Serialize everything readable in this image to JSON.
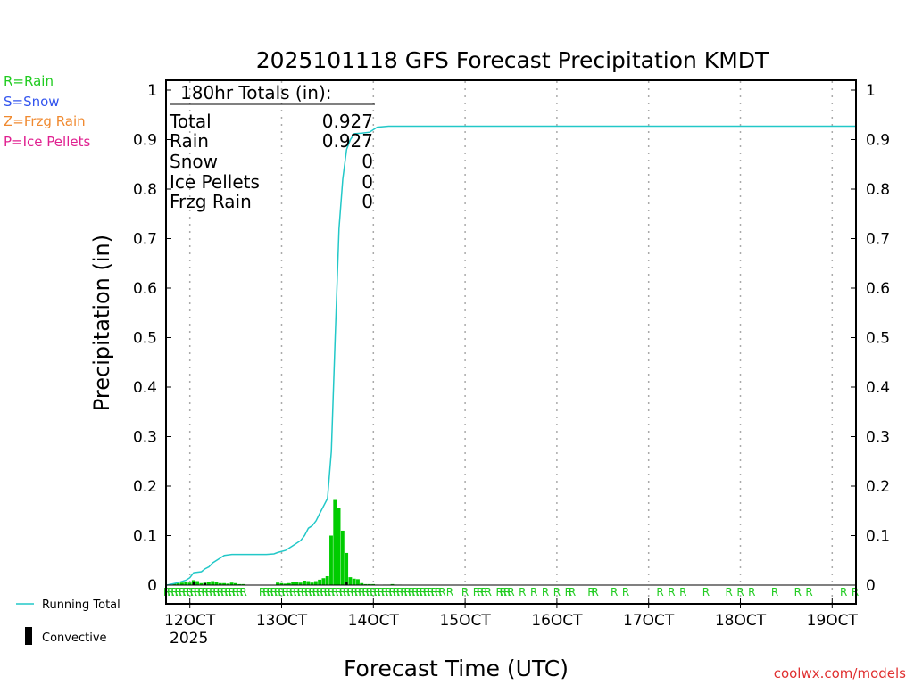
{
  "title": "2025101118 GFS Forecast Precipitation KMDT",
  "legend_types": [
    {
      "label": "R=Rain",
      "color": "#22cc22"
    },
    {
      "label": "S=Snow",
      "color": "#3355ee"
    },
    {
      "label": "Z=Frzg Rain",
      "color": "#f08a30"
    },
    {
      "label": "P=Ice Pellets",
      "color": "#e02090"
    }
  ],
  "totals": {
    "header": "180hr Totals (in):",
    "rows": [
      {
        "label": "Total",
        "value": "0.927"
      },
      {
        "label": "Rain",
        "value": "0.927"
      },
      {
        "label": "Snow",
        "value": "0"
      },
      {
        "label": "Ice Pellets",
        "value": "0"
      },
      {
        "label": "Frzg Rain",
        "value": "0"
      }
    ]
  },
  "legend_series": {
    "running_total": "Running Total",
    "convective": "Convective"
  },
  "credit": "coolwx.com/models",
  "colors": {
    "running_total": "#22c8c8",
    "bars": "#00cc00",
    "convective": "#000000",
    "ptype": "#22cc22",
    "credit": "#e03030"
  },
  "chart_data": {
    "type": "bar",
    "title": "2025101118 GFS Forecast Precipitation KMDT",
    "xlabel": "Forecast Time (UTC)",
    "ylabel": "Precipitation (in)",
    "ylim": [
      0,
      1
    ],
    "xlim_hours": [
      0,
      180
    ],
    "y_ticks": [
      "0",
      "0.1",
      "0.2",
      "0.3",
      "0.4",
      "0.5",
      "0.6",
      "0.7",
      "0.8",
      "0.9",
      "1"
    ],
    "x_ticks": [
      {
        "label": "12OCT",
        "hour": 6
      },
      {
        "label": "13OCT",
        "hour": 30
      },
      {
        "label": "14OCT",
        "hour": 54
      },
      {
        "label": "15OCT",
        "hour": 78
      },
      {
        "label": "16OCT",
        "hour": 102
      },
      {
        "label": "17OCT",
        "hour": 126
      },
      {
        "label": "18OCT",
        "hour": 150
      },
      {
        "label": "19OCT",
        "hour": 174
      }
    ],
    "year_label": "2025",
    "bar_width_hours": 1,
    "bars": [
      {
        "hour": 1,
        "value": 0.002
      },
      {
        "hour": 2,
        "value": 0.003
      },
      {
        "hour": 3,
        "value": 0.004
      },
      {
        "hour": 4,
        "value": 0.005
      },
      {
        "hour": 5,
        "value": 0.006
      },
      {
        "hour": 6,
        "value": 0.005
      },
      {
        "hour": 7,
        "value": 0.01
      },
      {
        "hour": 8,
        "value": 0.008
      },
      {
        "hour": 9,
        "value": 0.004
      },
      {
        "hour": 10,
        "value": 0.005
      },
      {
        "hour": 11,
        "value": 0.006
      },
      {
        "hour": 12,
        "value": 0.008
      },
      {
        "hour": 13,
        "value": 0.006
      },
      {
        "hour": 14,
        "value": 0.004
      },
      {
        "hour": 15,
        "value": 0.004
      },
      {
        "hour": 16,
        "value": 0.003
      },
      {
        "hour": 17,
        "value": 0.005
      },
      {
        "hour": 18,
        "value": 0.004
      },
      {
        "hour": 19,
        "value": 0.002
      },
      {
        "hour": 20,
        "value": 0.002
      },
      {
        "hour": 29,
        "value": 0.005
      },
      {
        "hour": 30,
        "value": 0.004
      },
      {
        "hour": 31,
        "value": 0.003
      },
      {
        "hour": 32,
        "value": 0.004
      },
      {
        "hour": 33,
        "value": 0.006
      },
      {
        "hour": 34,
        "value": 0.007
      },
      {
        "hour": 35,
        "value": 0.005
      },
      {
        "hour": 36,
        "value": 0.009
      },
      {
        "hour": 37,
        "value": 0.008
      },
      {
        "hour": 38,
        "value": 0.005
      },
      {
        "hour": 39,
        "value": 0.008
      },
      {
        "hour": 40,
        "value": 0.011
      },
      {
        "hour": 41,
        "value": 0.014
      },
      {
        "hour": 42,
        "value": 0.018
      },
      {
        "hour": 43,
        "value": 0.1
      },
      {
        "hour": 44,
        "value": 0.172
      },
      {
        "hour": 45,
        "value": 0.155
      },
      {
        "hour": 46,
        "value": 0.11
      },
      {
        "hour": 47,
        "value": 0.065
      },
      {
        "hour": 48,
        "value": 0.016
      },
      {
        "hour": 49,
        "value": 0.013
      },
      {
        "hour": 50,
        "value": 0.012
      },
      {
        "hour": 51,
        "value": 0.004
      },
      {
        "hour": 52,
        "value": 0.002
      },
      {
        "hour": 53,
        "value": 0.002
      },
      {
        "hour": 54,
        "value": 0.002
      },
      {
        "hour": 55,
        "value": 0.001
      },
      {
        "hour": 57,
        "value": 0.001
      },
      {
        "hour": 58,
        "value": 0.001
      },
      {
        "hour": 59,
        "value": 0.002
      },
      {
        "hour": 60,
        "value": 0.001
      },
      {
        "hour": 61,
        "value": 0.001
      }
    ],
    "convective_bars": [
      {
        "hour": 7,
        "value": 0.006
      },
      {
        "hour": 10,
        "value": 0.004
      },
      {
        "hour": 47,
        "value": 0.006
      }
    ],
    "running_total": [
      [
        0,
        0
      ],
      [
        3,
        0.005
      ],
      [
        5,
        0.01
      ],
      [
        6,
        0.015
      ],
      [
        7,
        0.025
      ],
      [
        9,
        0.027
      ],
      [
        10,
        0.033
      ],
      [
        11,
        0.037
      ],
      [
        12,
        0.045
      ],
      [
        13,
        0.05
      ],
      [
        14,
        0.055
      ],
      [
        15,
        0.06
      ],
      [
        17,
        0.062
      ],
      [
        21,
        0.062
      ],
      [
        26,
        0.062
      ],
      [
        28,
        0.063
      ],
      [
        29,
        0.066
      ],
      [
        31,
        0.07
      ],
      [
        33,
        0.08
      ],
      [
        35,
        0.09
      ],
      [
        36,
        0.1
      ],
      [
        37,
        0.115
      ],
      [
        38,
        0.12
      ],
      [
        39,
        0.13
      ],
      [
        40,
        0.145
      ],
      [
        41,
        0.16
      ],
      [
        42,
        0.175
      ],
      [
        43,
        0.27
      ],
      [
        44,
        0.5
      ],
      [
        45,
        0.72
      ],
      [
        46,
        0.82
      ],
      [
        47,
        0.88
      ],
      [
        48,
        0.9
      ],
      [
        49,
        0.912
      ],
      [
        51,
        0.913
      ],
      [
        53,
        0.915
      ],
      [
        54,
        0.92
      ],
      [
        55,
        0.925
      ],
      [
        58,
        0.927
      ],
      [
        70,
        0.927
      ],
      [
        180,
        0.927
      ]
    ],
    "ptype_markers": {
      "symbol": "R",
      "hours": [
        0,
        1,
        2,
        3,
        4,
        5,
        6,
        7,
        8,
        9,
        10,
        11,
        12,
        13,
        14,
        15,
        16,
        17,
        18,
        19,
        20,
        25,
        26,
        27,
        28,
        29,
        30,
        31,
        32,
        33,
        34,
        35,
        36,
        37,
        38,
        39,
        40,
        41,
        42,
        43,
        44,
        45,
        46,
        47,
        48,
        49,
        50,
        51,
        52,
        53,
        54,
        55,
        56,
        57,
        58,
        59,
        60,
        61,
        62,
        63,
        64,
        65,
        66,
        67,
        68,
        69,
        70,
        71,
        72,
        74,
        78,
        81,
        82,
        83,
        84,
        87,
        88,
        89,
        90,
        93,
        96,
        99,
        102,
        105,
        106,
        111,
        112,
        117,
        120,
        129,
        132,
        135,
        141,
        147,
        150,
        153,
        159,
        165,
        168,
        177,
        180
      ]
    }
  }
}
